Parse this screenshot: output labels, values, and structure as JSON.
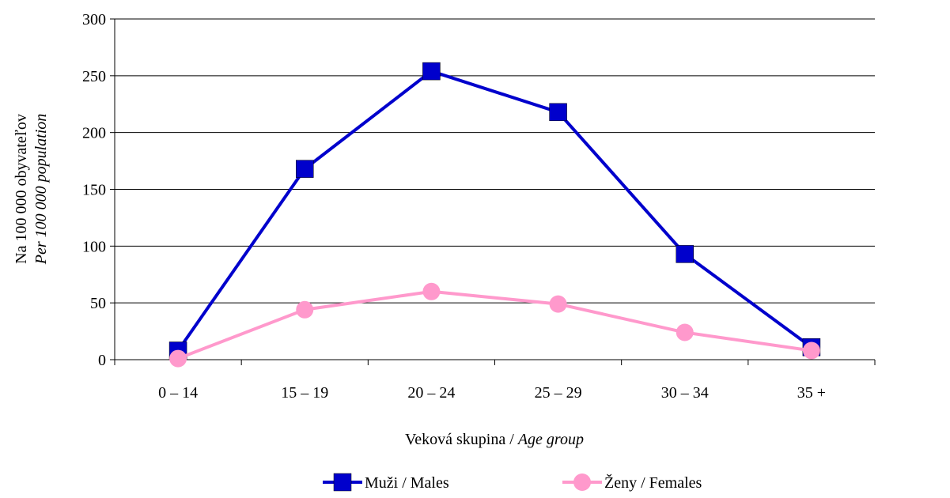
{
  "chart_data": {
    "type": "line",
    "categories": [
      "0 – 14",
      "15 – 19",
      "20 – 24",
      "25 – 29",
      "30 – 34",
      "35 +"
    ],
    "series": [
      {
        "name": "Muži / Males",
        "values": [
          8,
          168,
          254,
          218,
          93,
          11
        ],
        "color": "#0000cc",
        "marker": "square"
      },
      {
        "name": "Ženy / Females",
        "values": [
          1,
          44,
          60,
          49,
          24,
          8
        ],
        "color": "#ff99cc",
        "marker": "circle"
      }
    ],
    "xlabel": {
      "normal": "Veková skupina / ",
      "italic": "Age group"
    },
    "ylabel": {
      "line1": "Na 100 000 obyvateľov",
      "line2": "Per 100 000 population"
    },
    "ylim": [
      0,
      300
    ],
    "yticks": [
      0,
      50,
      100,
      150,
      200,
      250,
      300
    ],
    "grid": true,
    "legend_position": "bottom"
  }
}
